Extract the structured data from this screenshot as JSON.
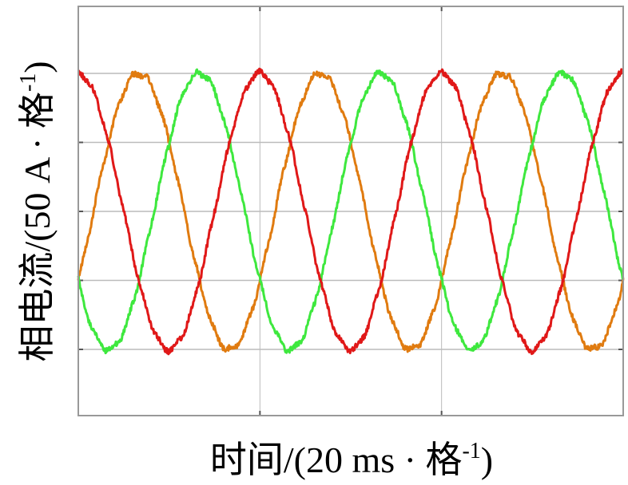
{
  "chart_data": {
    "type": "line",
    "title": "",
    "xlabel": "时间/(20 ms · 格",
    "xlabel_sup": "-1",
    "xlabel_end": ")",
    "ylabel": "相电流/(50 A · 格",
    "ylabel_sup": "-1",
    "ylabel_end": ")",
    "x_unit": "div",
    "y_unit": "div",
    "xlim": [
      0,
      3
    ],
    "ylim": [
      -2,
      2
    ],
    "grid": true,
    "grid_color": "#bbbbbb",
    "frame_color": "#999999",
    "x_divisions": 3,
    "y_divisions": 5,
    "series": [
      {
        "color": "#e07b10",
        "amplitude": 2.0,
        "period": 1.0,
        "phase_deg": -30,
        "noise": 0.04
      },
      {
        "color": "#3ee83e",
        "amplitude": 2.0,
        "period": 1.0,
        "phase_deg": -150,
        "noise": 0.04
      },
      {
        "color": "#e01818",
        "amplitude": 2.0,
        "period": 1.0,
        "phase_deg": 90,
        "noise": 0.04
      }
    ]
  }
}
